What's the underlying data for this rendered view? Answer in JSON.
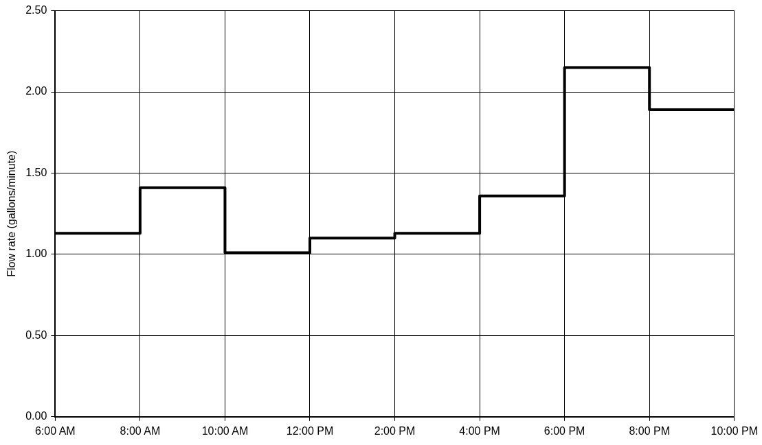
{
  "chart_data": {
    "type": "step",
    "ylabel": "Flow rate (gallons/minute)",
    "x": [
      6,
      8,
      10,
      12,
      14,
      16,
      18,
      20,
      22
    ],
    "series": [
      {
        "color": "#000000",
        "values": [
          1.13,
          1.41,
          1.01,
          1.1,
          1.13,
          1.36,
          2.15,
          1.89,
          1.89
        ]
      }
    ],
    "xlim": [
      6,
      22
    ],
    "xticks": [
      {
        "value": 6,
        "label": "6:00 AM"
      },
      {
        "value": 8,
        "label": "8:00 AM"
      },
      {
        "value": 10,
        "label": "10:00 AM"
      },
      {
        "value": 12,
        "label": "12:00 PM"
      },
      {
        "value": 14,
        "label": "2:00 PM"
      },
      {
        "value": 16,
        "label": "4:00 PM"
      },
      {
        "value": 18,
        "label": "6:00 PM"
      },
      {
        "value": 20,
        "label": "8:00 PM"
      },
      {
        "value": 22,
        "label": "10:00 PM"
      }
    ],
    "ylim": [
      0,
      2.5
    ],
    "yticks": [
      {
        "value": 0,
        "label": "0.00"
      },
      {
        "value": 0.5,
        "label": "0.50"
      },
      {
        "value": 1,
        "label": "1.00"
      },
      {
        "value": 1.5,
        "label": "1.50"
      },
      {
        "value": 2,
        "label": "2.00"
      },
      {
        "value": 2.5,
        "label": "2.50"
      }
    ],
    "grid": true,
    "legend": false,
    "marker": "none",
    "line_style": "solid"
  }
}
